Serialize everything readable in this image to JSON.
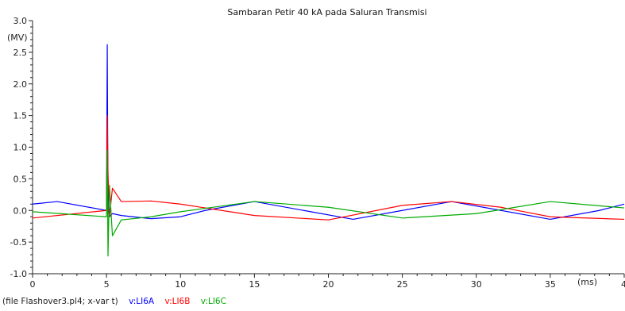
{
  "chart_data": {
    "type": "line",
    "title": "Sambaran Petir 40 kA pada Saluran Transmisi",
    "y_unit_label": "(MV)",
    "x_unit_label": "(ms)",
    "xlim": [
      0,
      40
    ],
    "ylim": [
      -1.0,
      3.0
    ],
    "x_ticks": [
      "0",
      "5",
      "10",
      "15",
      "20",
      "25",
      "30",
      "35",
      "40"
    ],
    "x_tick_values": [
      0,
      5,
      10,
      15,
      20,
      25,
      30,
      35,
      40
    ],
    "y_ticks": [
      "-1.0",
      "-0.5",
      "0.0",
      "0.5",
      "1.0",
      "1.5",
      "2.0",
      "2.5",
      "3.0"
    ],
    "y_tick_values": [
      -1.0,
      -0.5,
      0.0,
      0.5,
      1.0,
      1.5,
      2.0,
      2.5,
      3.0
    ],
    "grid": false,
    "series": [
      {
        "name": "v:LI6A",
        "color": "#0000ff",
        "x": [
          0,
          1.67,
          5.0,
          5.05,
          5.1,
          5.2,
          5.4,
          6.0,
          8.0,
          10.0,
          11.67,
          15.0,
          18.33,
          21.67,
          25.0,
          28.33,
          31.67,
          35.0,
          38.33,
          40.0
        ],
        "y": [
          0.1,
          0.14,
          0.0,
          2.62,
          0.0,
          -0.1,
          -0.05,
          -0.08,
          -0.13,
          -0.1,
          0.0,
          0.14,
          0.0,
          -0.14,
          0.0,
          0.14,
          0.0,
          -0.14,
          0.0,
          0.1
        ]
      },
      {
        "name": "v:LI6B",
        "color": "#ff0000",
        "x": [
          0,
          5.0,
          5.05,
          5.1,
          5.2,
          5.4,
          6.0,
          8.0,
          10.0,
          15.0,
          20.0,
          25.0,
          28.33,
          31.67,
          35.0,
          40.0
        ],
        "y": [
          -0.12,
          0.0,
          1.5,
          0.6,
          -0.1,
          0.35,
          0.14,
          0.15,
          0.1,
          -0.08,
          -0.15,
          0.08,
          0.14,
          0.05,
          -0.1,
          -0.14
        ]
      },
      {
        "name": "v:LI6C",
        "color": "#00aa00",
        "x": [
          0,
          5.0,
          5.05,
          5.1,
          5.2,
          5.4,
          6.0,
          8.0,
          10.0,
          15.0,
          20.0,
          25.0,
          30.0,
          35.0,
          40.0
        ],
        "y": [
          -0.02,
          -0.1,
          0.95,
          -0.72,
          0.4,
          -0.4,
          -0.15,
          -0.1,
          -0.02,
          0.14,
          0.05,
          -0.12,
          -0.05,
          0.14,
          0.04
        ]
      }
    ],
    "footer_file_label": "(file Flashover3.pl4; x-var t)",
    "legend": [
      "v:LI6A",
      "v:LI6B",
      "v:LI6C"
    ],
    "legend_placement": "bottom-left"
  }
}
